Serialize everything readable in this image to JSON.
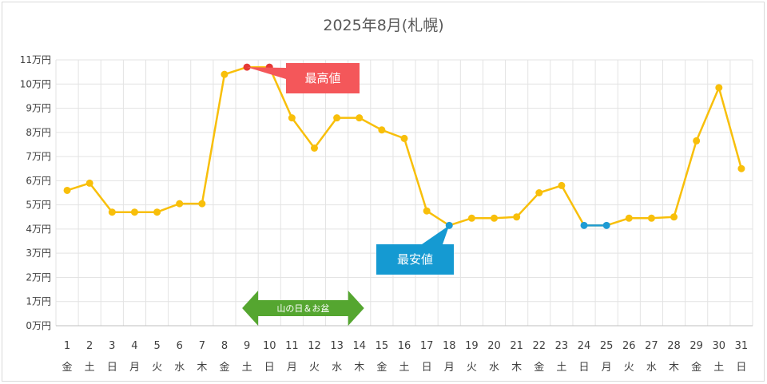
{
  "chart_data": {
    "type": "line",
    "title": "2025年8月(札幌)",
    "y_tick_labels": [
      "0万円",
      "1万円",
      "2万円",
      "3万円",
      "4万円",
      "5万円",
      "6万円",
      "7万円",
      "8万円",
      "9万円",
      "10万円",
      "11万円"
    ],
    "ylim": [
      0,
      11
    ],
    "y_unit": "万円",
    "categories": [
      "1",
      "2",
      "3",
      "4",
      "5",
      "6",
      "7",
      "8",
      "9",
      "10",
      "11",
      "12",
      "13",
      "14",
      "15",
      "16",
      "17",
      "18",
      "19",
      "20",
      "21",
      "22",
      "23",
      "24",
      "25",
      "26",
      "27",
      "28",
      "29",
      "30",
      "31"
    ],
    "weekdays": [
      "金",
      "土",
      "日",
      "月",
      "火",
      "水",
      "木",
      "金",
      "土",
      "日",
      "月",
      "火",
      "水",
      "木",
      "金",
      "土",
      "日",
      "月",
      "火",
      "水",
      "木",
      "金",
      "土",
      "日",
      "月",
      "火",
      "水",
      "木",
      "金",
      "土",
      "日"
    ],
    "series": [
      {
        "values": [
          5.6,
          5.9,
          4.7,
          4.7,
          4.7,
          5.05,
          5.05,
          10.4,
          10.7,
          10.7,
          8.6,
          7.35,
          8.6,
          8.6,
          8.1,
          7.75,
          4.75,
          4.15,
          4.45,
          4.45,
          4.5,
          5.5,
          5.8,
          4.15,
          4.15,
          4.45,
          4.45,
          4.5,
          7.65,
          9.85,
          6.5
        ]
      }
    ],
    "grid": true,
    "colors": {
      "line": "#f8bf0a",
      "max_marker": "#e53935",
      "min_marker": "#1e9bd4"
    },
    "annotations": {
      "max": {
        "label": "最高値",
        "days": [
          9,
          10
        ],
        "color": "#f4575a"
      },
      "min": {
        "label": "最安値",
        "days": [
          18,
          24,
          25
        ],
        "color": "#159ad2"
      },
      "holiday": {
        "label": "山の日＆お盆",
        "from_day": 9,
        "to_day": 14,
        "color": "#55a630"
      }
    }
  }
}
